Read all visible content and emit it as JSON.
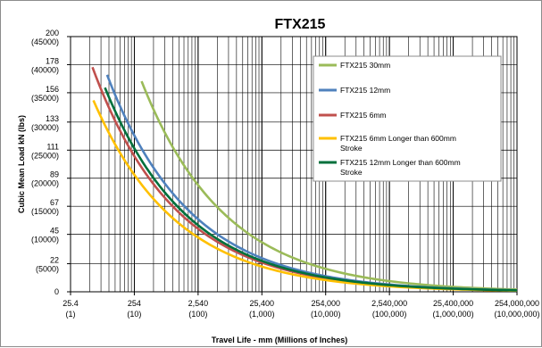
{
  "chart_data": {
    "type": "line",
    "title": "FTX215",
    "xlabel": "Travel Life - mm (Millions of Inches)",
    "ylabel": "Cubic Mean Load kN (lbs)",
    "x_scale": "log",
    "xlim": [
      25.4,
      25400000
    ],
    "ylim": [
      0,
      200
    ],
    "grid": true,
    "legend_position": "top-right",
    "x_ticks": [
      {
        "value": 25.4,
        "label": "25.4",
        "sublabel": "(1)"
      },
      {
        "value": 254,
        "label": "254",
        "sublabel": "(10)"
      },
      {
        "value": 2540,
        "label": "2,540",
        "sublabel": "(100)"
      },
      {
        "value": 25400,
        "label": "25,400",
        "sublabel": "(1,000)"
      },
      {
        "value": 254000,
        "label": "254,000",
        "sublabel": "(10,000)"
      },
      {
        "value": 2540000,
        "label": "2,540,000",
        "sublabel": "(100,000)"
      },
      {
        "value": 25400000,
        "label": "25,400,000",
        "sublabel": "(1,000,000)"
      },
      {
        "value": 254000000,
        "label": "254,000,000",
        "sublabel": "(10,000,000)"
      }
    ],
    "y_ticks": [
      {
        "value": 0,
        "label": "0",
        "sublabel": ""
      },
      {
        "value": 22,
        "label": "22",
        "sublabel": "(5000)"
      },
      {
        "value": 45,
        "label": "45",
        "sublabel": "(10000)"
      },
      {
        "value": 67,
        "label": "67",
        "sublabel": "(15000)"
      },
      {
        "value": 89,
        "label": "89",
        "sublabel": "(20000)"
      },
      {
        "value": 111,
        "label": "111",
        "sublabel": "(25000)"
      },
      {
        "value": 133,
        "label": "133",
        "sublabel": "(30000)"
      },
      {
        "value": 156,
        "label": "156",
        "sublabel": "(35000)"
      },
      {
        "value": 178,
        "label": "178",
        "sublabel": "(40000)"
      },
      {
        "value": 200,
        "label": "200",
        "sublabel": "(45000)"
      }
    ],
    "series": [
      {
        "name": "FTX215 30mm",
        "color": "#9bbb59",
        "x_start": 330,
        "y_start": 165
      },
      {
        "name": "FTX215 12mm",
        "color": "#4f81bd",
        "x_start": 95,
        "y_start": 170
      },
      {
        "name": "FTX215 6mm",
        "color": "#c0504d",
        "x_start": 56,
        "y_start": 176
      },
      {
        "name": "FTX215 6mm Longer than 600mm Stroke",
        "color": "#ffc000",
        "x_start": 58,
        "y_start": 150
      },
      {
        "name": "FTX215 12mm Longer than 600mm Stroke",
        "color": "#00703c",
        "x_start": 88,
        "y_start": 160
      }
    ]
  }
}
